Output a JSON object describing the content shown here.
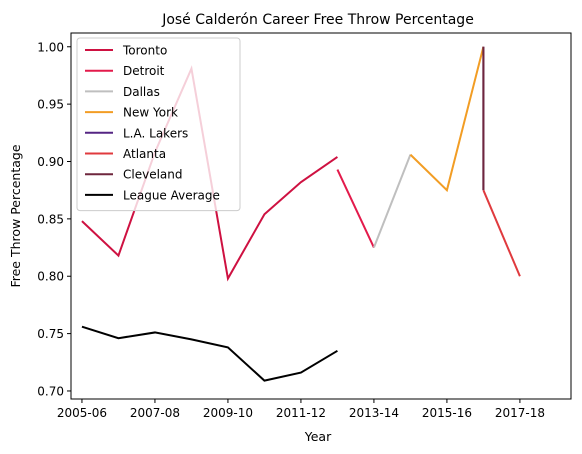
{
  "chart_data": {
    "type": "line",
    "title": "José Calderón  Career Free Throw Percentage",
    "xlabel": "Year",
    "ylabel": "Free Throw Percentage",
    "xlim": [
      2004.7,
      2018.4
    ],
    "ylim": [
      0.693,
      1.012
    ],
    "grid": false,
    "legend_position": "top-left",
    "xticks": [
      {
        "value": 2005,
        "label": "2005-06"
      },
      {
        "value": 2007,
        "label": "2007-08"
      },
      {
        "value": 2009,
        "label": "2009-10"
      },
      {
        "value": 2011,
        "label": "2011-12"
      },
      {
        "value": 2013,
        "label": "2013-14"
      },
      {
        "value": 2015,
        "label": "2015-16"
      },
      {
        "value": 2017,
        "label": "2017-18"
      }
    ],
    "yticks": [
      {
        "value": 0.7,
        "label": "0.70"
      },
      {
        "value": 0.75,
        "label": "0.75"
      },
      {
        "value": 0.8,
        "label": "0.80"
      },
      {
        "value": 0.85,
        "label": "0.85"
      },
      {
        "value": 0.9,
        "label": "0.90"
      },
      {
        "value": 0.95,
        "label": "0.95"
      },
      {
        "value": 1.0,
        "label": "1.00"
      }
    ],
    "series": [
      {
        "name": "Toronto",
        "color": "#ce1141",
        "points": [
          [
            2005,
            0.848
          ],
          [
            2006,
            0.818
          ],
          [
            2007,
            0.908
          ],
          [
            2008,
            0.981
          ],
          [
            2009,
            0.798
          ],
          [
            2010,
            0.854
          ],
          [
            2011,
            0.882
          ],
          [
            2012,
            0.904
          ]
        ]
      },
      {
        "name": "Detroit",
        "color": "#e31a4b",
        "points": [
          [
            2012,
            0.893
          ],
          [
            2013,
            0.825
          ]
        ]
      },
      {
        "name": "Dallas",
        "color": "#bfbfbf",
        "points": [
          [
            2013,
            0.825
          ],
          [
            2014,
            0.906
          ]
        ]
      },
      {
        "name": "New York",
        "color": "#f29d24",
        "points": [
          [
            2014,
            0.906
          ],
          [
            2015,
            0.875
          ],
          [
            2016,
            1.0
          ]
        ]
      },
      {
        "name": "L.A. Lakers",
        "color": "#552583",
        "points": [
          [
            2016,
            1.0
          ],
          [
            2016,
            0.875
          ]
        ]
      },
      {
        "name": "Atlanta",
        "color": "#e03a3e",
        "points": [
          [
            2016,
            0.875
          ],
          [
            2017,
            0.8
          ]
        ]
      },
      {
        "name": "Cleveland",
        "color": "#6f263d",
        "points": [
          [
            2016,
            1.0
          ],
          [
            2016,
            0.875
          ]
        ]
      },
      {
        "name": "League Average",
        "color": "#000000",
        "points": [
          [
            2005,
            0.756
          ],
          [
            2006,
            0.746
          ],
          [
            2007,
            0.751
          ],
          [
            2008,
            0.745
          ],
          [
            2009,
            0.738
          ],
          [
            2010,
            0.709
          ],
          [
            2011,
            0.716
          ],
          [
            2012,
            0.735
          ]
        ]
      }
    ]
  }
}
